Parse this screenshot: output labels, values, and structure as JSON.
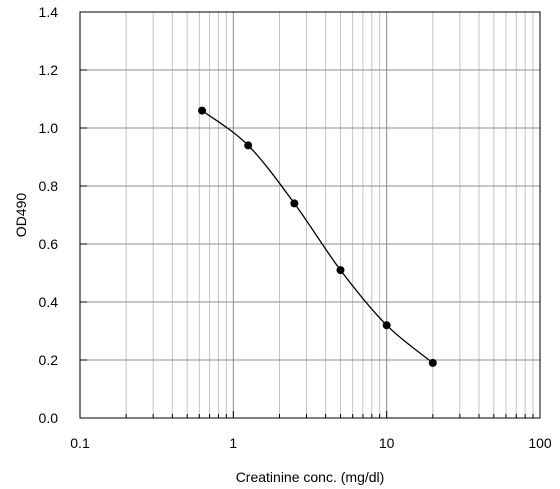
{
  "chart_data": {
    "type": "line",
    "title": "",
    "xlabel": "Creatinine conc. (mg/dl)",
    "ylabel": "OD490",
    "xscale": "log",
    "xlim": [
      0.1,
      100
    ],
    "ylim": [
      0.0,
      1.4
    ],
    "grid": true,
    "x_ticks": [
      0.1,
      1,
      10,
      100
    ],
    "x_tick_labels": [
      "0.1",
      "1",
      "10",
      "100"
    ],
    "y_ticks": [
      0.0,
      0.2,
      0.4,
      0.6,
      0.8,
      1.0,
      1.2,
      1.4
    ],
    "y_tick_labels": [
      "0.0",
      "0.2",
      "0.4",
      "0.6",
      "0.8",
      "1.0",
      "1.2",
      "1.4"
    ],
    "series": [
      {
        "x": [
          0.625,
          1.25,
          2.5,
          5,
          10,
          20
        ],
        "y": [
          1.06,
          0.94,
          0.74,
          0.51,
          0.32,
          0.19
        ],
        "color": "#000000",
        "marker": "circle"
      }
    ]
  }
}
